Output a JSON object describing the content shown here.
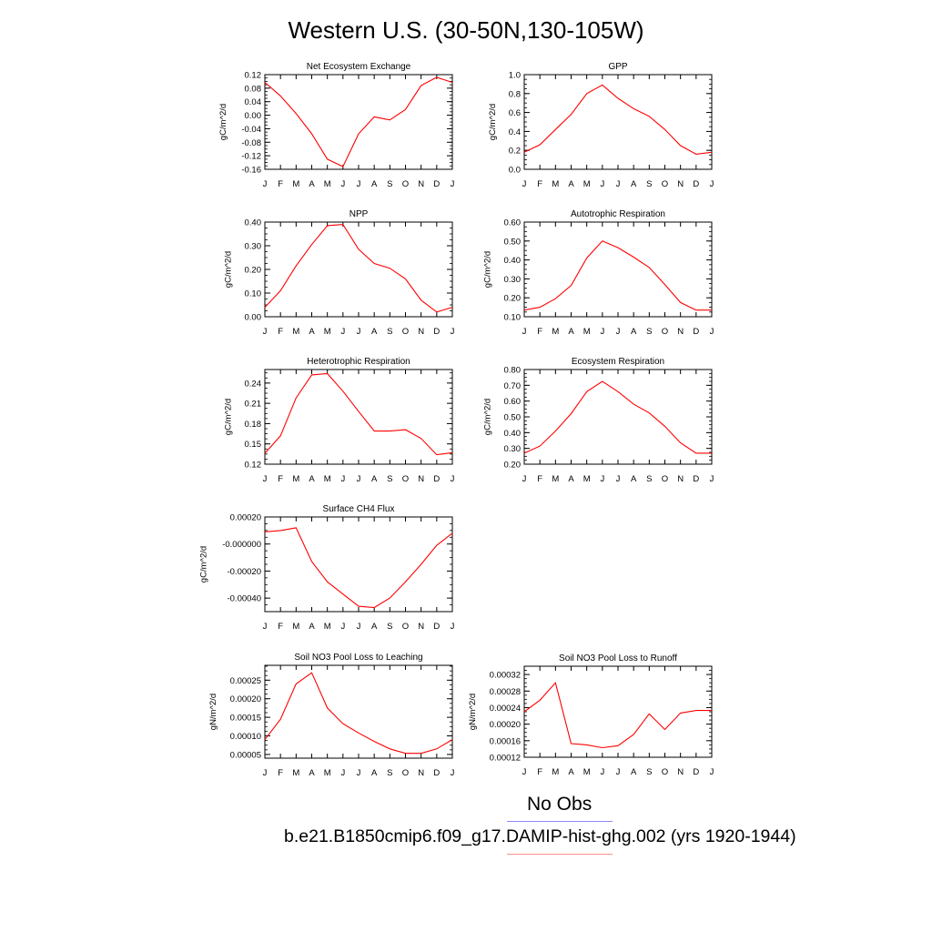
{
  "page_title": "Western U.S. (30-50N,130-105W)",
  "colors": {
    "model_line": "#ff0000",
    "obs_legend_line": "#8c8cff",
    "model_legend_line": "#ff8c8c",
    "axis": "#000000"
  },
  "legend": {
    "obs_label": "No Obs",
    "model_label": "b.e21.B1850cmip6.f09_g17.DAMIP-hist-ghg.002 (yrs 1920-1944)"
  },
  "chart_data": [
    {
      "type": "line",
      "title": "Net Ecosystem Exchange",
      "ylabel": "gC/m^2/d",
      "x": [
        "J",
        "F",
        "M",
        "A",
        "M",
        "J",
        "J",
        "A",
        "S",
        "O",
        "N",
        "D",
        "J"
      ],
      "ylim": [
        -0.16,
        0.12
      ],
      "yticks": [
        "-0.16",
        "-0.12",
        "-0.08",
        "-0.04",
        "0.00",
        "0.04",
        "0.08",
        "0.12"
      ],
      "series": [
        {
          "values": [
            0.097,
            0.057,
            0.005,
            -0.055,
            -0.13,
            -0.152,
            -0.055,
            -0.005,
            -0.014,
            0.017,
            0.088,
            0.112,
            0.097
          ]
        }
      ]
    },
    {
      "type": "line",
      "title": "GPP",
      "ylabel": "gC/m^2/d",
      "x": [
        "J",
        "F",
        "M",
        "A",
        "M",
        "J",
        "J",
        "A",
        "S",
        "O",
        "N",
        "D",
        "J"
      ],
      "ylim": [
        0.0,
        1.0
      ],
      "yticks": [
        "0.0",
        "0.2",
        "0.4",
        "0.6",
        "0.8",
        "1.0"
      ],
      "series": [
        {
          "values": [
            0.18,
            0.26,
            0.42,
            0.58,
            0.8,
            0.89,
            0.75,
            0.64,
            0.56,
            0.42,
            0.25,
            0.16,
            0.18
          ]
        }
      ]
    },
    {
      "type": "line",
      "title": "NPP",
      "ylabel": "gC/m^2/d",
      "x": [
        "J",
        "F",
        "M",
        "A",
        "M",
        "J",
        "J",
        "A",
        "S",
        "O",
        "N",
        "D",
        "J"
      ],
      "ylim": [
        0.0,
        0.4
      ],
      "yticks": [
        "0.00",
        "0.10",
        "0.20",
        "0.30",
        "0.40"
      ],
      "series": [
        {
          "values": [
            0.04,
            0.11,
            0.215,
            0.305,
            0.385,
            0.39,
            0.285,
            0.225,
            0.205,
            0.16,
            0.07,
            0.02,
            0.04
          ]
        }
      ]
    },
    {
      "type": "line",
      "title": "Autotrophic Respiration",
      "ylabel": "gC/m^2/d",
      "x": [
        "J",
        "F",
        "M",
        "A",
        "M",
        "J",
        "J",
        "A",
        "S",
        "O",
        "N",
        "D",
        "J"
      ],
      "ylim": [
        0.1,
        0.6
      ],
      "yticks": [
        "0.10",
        "0.20",
        "0.30",
        "0.40",
        "0.50",
        "0.60"
      ],
      "series": [
        {
          "values": [
            0.135,
            0.15,
            0.195,
            0.265,
            0.41,
            0.5,
            0.465,
            0.415,
            0.36,
            0.27,
            0.175,
            0.135,
            0.135
          ]
        }
      ]
    },
    {
      "type": "line",
      "title": "Heterotrophic Respiration",
      "ylabel": "gC/m^2/d",
      "x": [
        "J",
        "F",
        "M",
        "A",
        "M",
        "J",
        "J",
        "A",
        "S",
        "O",
        "N",
        "D",
        "J"
      ],
      "ylim": [
        0.12,
        0.26
      ],
      "yticks": [
        "0.12",
        "0.15",
        "0.18",
        "0.21",
        "0.24"
      ],
      "series": [
        {
          "values": [
            0.136,
            0.162,
            0.218,
            0.252,
            0.254,
            0.228,
            0.198,
            0.169,
            0.169,
            0.171,
            0.158,
            0.134,
            0.137
          ]
        }
      ]
    },
    {
      "type": "line",
      "title": "Ecosystem Respiration",
      "ylabel": "gC/m^2/d",
      "x": [
        "J",
        "F",
        "M",
        "A",
        "M",
        "J",
        "J",
        "A",
        "S",
        "O",
        "N",
        "D",
        "J"
      ],
      "ylim": [
        0.2,
        0.8
      ],
      "yticks": [
        "0.20",
        "0.30",
        "0.40",
        "0.50",
        "0.60",
        "0.70",
        "0.80"
      ],
      "series": [
        {
          "values": [
            0.27,
            0.315,
            0.41,
            0.52,
            0.66,
            0.725,
            0.66,
            0.58,
            0.525,
            0.44,
            0.335,
            0.27,
            0.27
          ]
        }
      ]
    },
    {
      "type": "line",
      "title": "Surface CH4 Flux",
      "ylabel": "gC/m^2/d",
      "x": [
        "J",
        "F",
        "M",
        "A",
        "M",
        "J",
        "J",
        "A",
        "S",
        "O",
        "N",
        "D",
        "J"
      ],
      "ylim": [
        -0.0005,
        0.0002
      ],
      "yticks": [
        "-0.00040",
        "-0.00020",
        "-0.000000",
        "0.00020"
      ],
      "ytick_values": [
        -0.0004,
        -0.0002,
        0.0,
        0.0002
      ],
      "series": [
        {
          "values": [
            9e-05,
            0.0001,
            0.00012,
            -0.00013,
            -0.00028,
            -0.00037,
            -0.00046,
            -0.00047,
            -0.0004,
            -0.00028,
            -0.00015,
            -1e-05,
            8e-05
          ]
        }
      ]
    },
    {
      "type": "line",
      "title": "Soil NO3 Pool Loss to Leaching",
      "ylabel": "gN/m^2/d",
      "x": [
        "J",
        "F",
        "M",
        "A",
        "M",
        "J",
        "J",
        "A",
        "S",
        "O",
        "N",
        "D",
        "J"
      ],
      "ylim": [
        4e-05,
        0.00029
      ],
      "yticks": [
        "0.00005",
        "0.00010",
        "0.00015",
        "0.00020",
        "0.00025"
      ],
      "ytick_values": [
        5e-05,
        0.0001,
        0.00015,
        0.0002,
        0.00025
      ],
      "series": [
        {
          "values": [
            9e-05,
            0.000145,
            0.00024,
            0.00027,
            0.000175,
            0.000133,
            0.000108,
            8.5e-05,
            6.5e-05,
            5.3e-05,
            5.3e-05,
            6.5e-05,
            9e-05
          ]
        }
      ]
    },
    {
      "type": "line",
      "title": "Soil NO3 Pool Loss to Runoff",
      "ylabel": "gN/m^2/d",
      "x": [
        "J",
        "F",
        "M",
        "A",
        "M",
        "J",
        "J",
        "A",
        "S",
        "O",
        "N",
        "D",
        "J"
      ],
      "ylim": [
        0.00012,
        0.00034
      ],
      "yticks": [
        "0.00012",
        "0.00016",
        "0.00020",
        "0.00024",
        "0.00028",
        "0.00032"
      ],
      "ytick_values": [
        0.00012,
        0.00016,
        0.0002,
        0.00024,
        0.00028,
        0.00032
      ],
      "series": [
        {
          "values": [
            0.00023,
            0.000258,
            0.0003,
            0.000153,
            0.00015,
            0.000143,
            0.000148,
            0.000175,
            0.000225,
            0.000187,
            0.000227,
            0.000233,
            0.000233
          ]
        }
      ]
    }
  ]
}
